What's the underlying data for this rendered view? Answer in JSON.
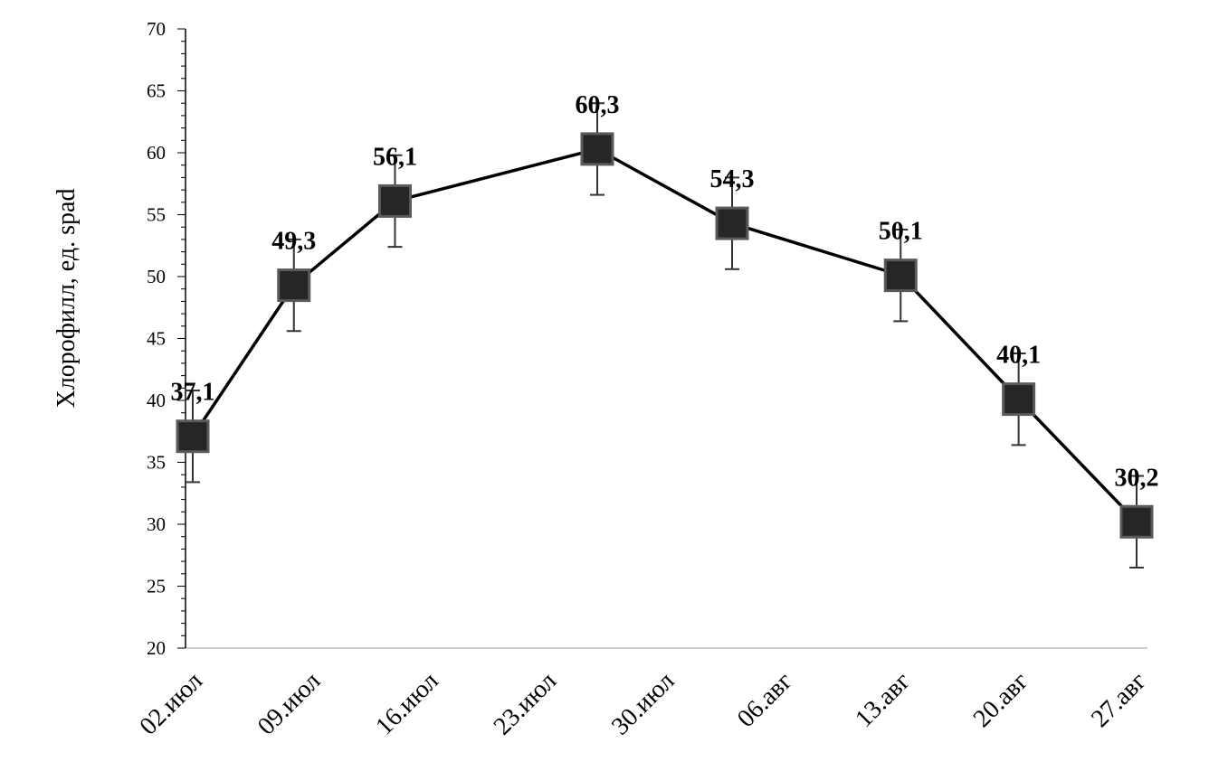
{
  "chart_data": {
    "type": "line",
    "title": "",
    "xlabel": "",
    "ylabel": "Хлорофилл, ед. spad",
    "ylim": [
      20,
      70
    ],
    "ymajor_step": 5,
    "yminor_step": 1,
    "x_axis_start": "2023-07-02",
    "x_axis_end": "2023-08-27",
    "x_ticks": [
      "02.июл",
      "09.июл",
      "16.июл",
      "23.июл",
      "30.июл",
      "06.авг",
      "13.авг",
      "20.авг",
      "27.авг"
    ],
    "x_tick_dates": [
      "2023-07-02",
      "2023-07-09",
      "2023-07-16",
      "2023-07-23",
      "2023-07-30",
      "2023-08-06",
      "2023-08-13",
      "2023-08-20",
      "2023-08-27"
    ],
    "grid": false,
    "legend": "none",
    "series": [
      {
        "marker": "square",
        "line_color": "#000000",
        "marker_color": "#262626",
        "marker_edge": "#5a5a5a",
        "points": [
          {
            "x": "2023-07-02",
            "y": 37.1,
            "label": "37,1",
            "err": 3.7
          },
          {
            "x": "2023-07-08",
            "y": 49.3,
            "label": "49,3",
            "err": 3.7
          },
          {
            "x": "2023-07-14",
            "y": 56.1,
            "label": "56,1",
            "err": 3.7
          },
          {
            "x": "2023-07-26",
            "y": 60.3,
            "label": "60,3",
            "err": 3.7
          },
          {
            "x": "2023-08-03",
            "y": 54.3,
            "label": "54,3",
            "err": 3.7
          },
          {
            "x": "2023-08-13",
            "y": 50.1,
            "label": "50,1",
            "err": 3.7
          },
          {
            "x": "2023-08-20",
            "y": 40.1,
            "label": "40,1",
            "err": 3.7
          },
          {
            "x": "2023-08-27",
            "y": 30.2,
            "label": "30,2",
            "err": 3.7
          }
        ]
      }
    ]
  }
}
